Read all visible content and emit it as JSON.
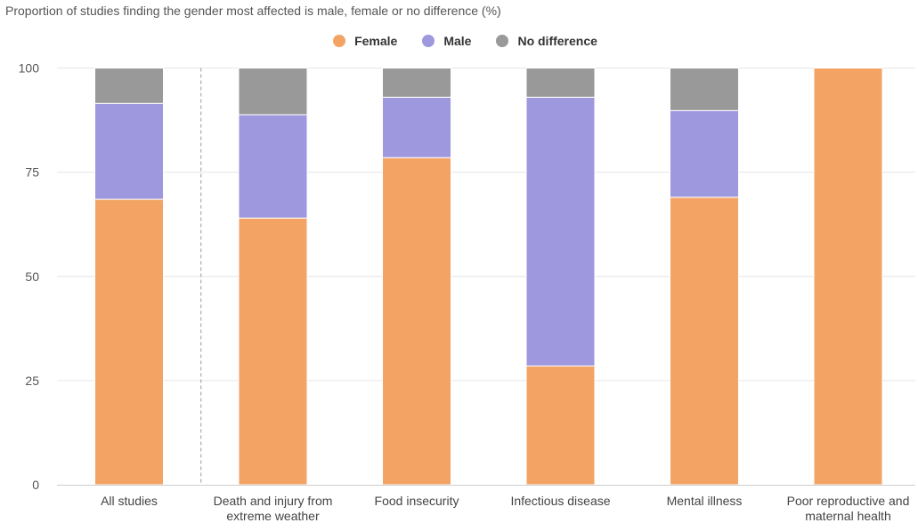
{
  "chart_data": {
    "type": "bar",
    "stacked": true,
    "title": "Proportion of studies finding the gender most affected is male, female or no difference (%)",
    "xlabel": "",
    "ylabel": "",
    "ylim": [
      0,
      100
    ],
    "yticks": [
      0,
      25,
      50,
      75,
      100
    ],
    "grid": true,
    "legend_position": "top-center",
    "categories": [
      [
        "All studies"
      ],
      [
        "Death and injury from",
        "extreme weather"
      ],
      [
        "Food insecurity"
      ],
      [
        "Infectious disease"
      ],
      [
        "Mental illness"
      ],
      [
        "Poor reproductive and",
        "maternal health"
      ]
    ],
    "series": [
      {
        "name": "Female",
        "color": "#f3a465",
        "values": [
          68.5,
          64,
          78.5,
          28.5,
          69,
          100
        ]
      },
      {
        "name": "Male",
        "color": "#9e98de",
        "values": [
          23,
          24.8,
          14.5,
          64.5,
          20.8,
          0
        ]
      },
      {
        "name": "No difference",
        "color": "#999999",
        "values": [
          8.5,
          11.2,
          7,
          7,
          10.2,
          0
        ]
      }
    ]
  }
}
